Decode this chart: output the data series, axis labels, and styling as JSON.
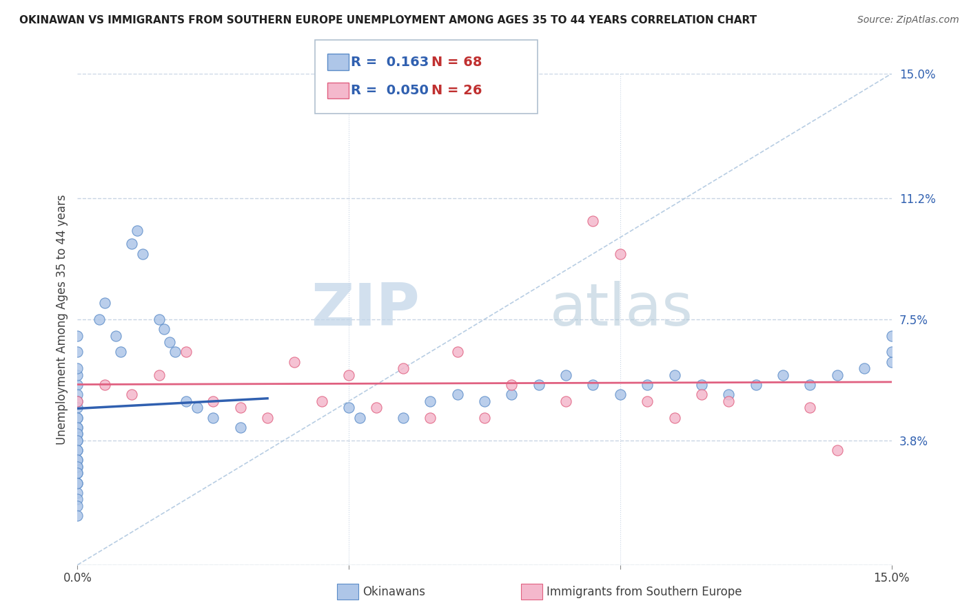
{
  "title": "OKINAWAN VS IMMIGRANTS FROM SOUTHERN EUROPE UNEMPLOYMENT AMONG AGES 35 TO 44 YEARS CORRELATION CHART",
  "source": "Source: ZipAtlas.com",
  "ylabel": "Unemployment Among Ages 35 to 44 years",
  "xlim": [
    0.0,
    15.0
  ],
  "ylim": [
    0.0,
    15.0
  ],
  "yticks": [
    0.0,
    3.8,
    7.5,
    11.2,
    15.0
  ],
  "ytick_labels": [
    "",
    "3.8%",
    "7.5%",
    "11.2%",
    "15.0%"
  ],
  "xticks": [
    0.0,
    5.0,
    10.0,
    15.0
  ],
  "xtick_labels": [
    "0.0%",
    "",
    "",
    "15.0%"
  ],
  "legend_ok_R": "0.163",
  "legend_ok_N": "68",
  "legend_im_R": "0.050",
  "legend_im_N": "26",
  "okinawan_color": "#aec6e8",
  "okinawan_edge": "#5b8cc8",
  "immigrant_color": "#f4b8cc",
  "immigrant_edge": "#e06080",
  "line_okinawan_color": "#3060b0",
  "line_immigrant_color": "#e06080",
  "diagonal_color": "#b0c8e0",
  "background_color": "#ffffff",
  "grid_color": "#c8d4e4",
  "okinawan_x": [
    0.0,
    0.0,
    0.0,
    0.0,
    0.0,
    0.0,
    0.0,
    0.0,
    0.0,
    0.0,
    0.0,
    0.0,
    0.0,
    0.0,
    0.0,
    0.0,
    0.0,
    0.0,
    0.0,
    0.0,
    0.0,
    0.0,
    0.0,
    0.0,
    0.0,
    0.0,
    0.0,
    0.0,
    0.0,
    0.0,
    0.4,
    0.5,
    0.7,
    0.8,
    1.0,
    1.1,
    1.2,
    1.5,
    1.6,
    1.7,
    1.8,
    2.0,
    2.2,
    2.5,
    3.0,
    5.0,
    5.2,
    6.0,
    6.5,
    7.0,
    7.5,
    8.0,
    8.5,
    9.0,
    9.5,
    10.0,
    10.5,
    11.0,
    11.5,
    12.0,
    12.5,
    13.0,
    13.5,
    14.0,
    14.5,
    15.0,
    15.0,
    15.0
  ],
  "okinawan_y": [
    5.5,
    5.2,
    5.0,
    4.8,
    4.5,
    4.2,
    4.0,
    3.8,
    3.5,
    3.2,
    3.0,
    2.8,
    2.5,
    2.2,
    2.0,
    1.8,
    1.5,
    5.8,
    6.0,
    6.5,
    7.0,
    4.5,
    4.2,
    4.0,
    3.8,
    3.5,
    3.2,
    3.0,
    2.8,
    2.5,
    7.5,
    8.0,
    7.0,
    6.5,
    9.8,
    10.2,
    9.5,
    7.5,
    7.2,
    6.8,
    6.5,
    5.0,
    4.8,
    4.5,
    4.2,
    4.8,
    4.5,
    4.5,
    5.0,
    5.2,
    5.0,
    5.2,
    5.5,
    5.8,
    5.5,
    5.2,
    5.5,
    5.8,
    5.5,
    5.2,
    5.5,
    5.8,
    5.5,
    5.8,
    6.0,
    6.2,
    6.5,
    7.0
  ],
  "immigrant_x": [
    0.0,
    0.5,
    1.0,
    1.5,
    2.0,
    2.5,
    3.0,
    3.5,
    4.0,
    4.5,
    5.0,
    5.5,
    6.0,
    6.5,
    7.0,
    7.5,
    8.0,
    9.0,
    9.5,
    10.0,
    10.5,
    11.0,
    11.5,
    12.0,
    13.5,
    14.0
  ],
  "immigrant_y": [
    5.0,
    5.5,
    5.2,
    5.8,
    6.5,
    5.0,
    4.8,
    4.5,
    6.2,
    5.0,
    5.8,
    4.8,
    6.0,
    4.5,
    6.5,
    4.5,
    5.5,
    5.0,
    10.5,
    9.5,
    5.0,
    4.5,
    5.2,
    5.0,
    4.8,
    3.5
  ],
  "watermark_zip": "ZIP",
  "watermark_atlas": "atlas"
}
